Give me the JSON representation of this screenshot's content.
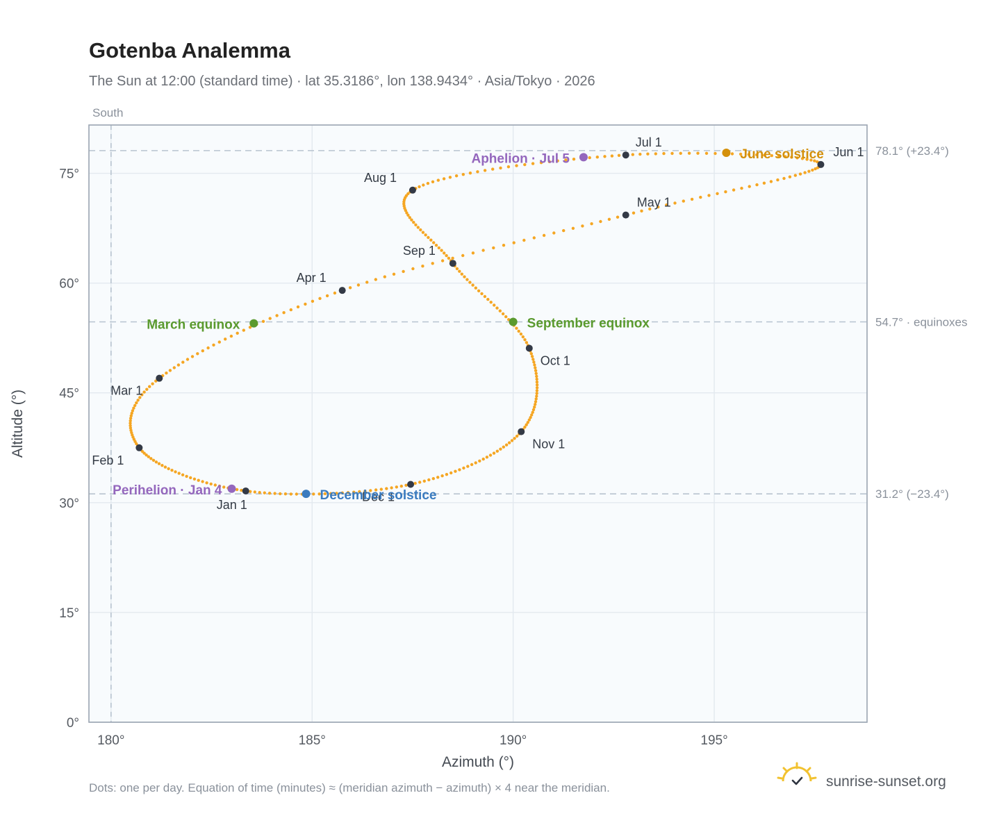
{
  "title": "Gotenba Analemma",
  "subtitle": "The Sun at 12:00 (standard time) · lat 35.3186°, lon 138.9434° · Asia/Tokyo · 2026",
  "south_label": "South",
  "footer_note": "Dots: one per day. Equation of time (minutes) ≈ (meridian azimuth − azimuth) × 4 near the meridian.",
  "brand": "sunrise-sunset.org",
  "colors": {
    "curve": "#f5a623",
    "month_marker": "#343a46",
    "equinox": "#5a9a2e",
    "june_solstice": "#d4900b",
    "december_solstice": "#3a7bbf",
    "apsis": "#9467bd",
    "reference_line": "#b7c3cf",
    "plot_background": "#f8fbfd"
  },
  "chart_data": {
    "type": "scatter",
    "xlabel": "Azimuth (°)",
    "ylabel": "Altitude (°)",
    "xlim": [
      179.45,
      198.8
    ],
    "ylim": [
      0,
      81.6
    ],
    "x_ticks": [
      180,
      185,
      190,
      195
    ],
    "x_tick_labels": [
      "180°",
      "185°",
      "190°",
      "195°"
    ],
    "y_ticks": [
      0,
      15,
      30,
      45,
      60,
      75
    ],
    "y_tick_labels": [
      "0°",
      "15°",
      "30°",
      "45°",
      "60°",
      "75°"
    ],
    "grid": true,
    "meridian_azimuth": 180,
    "reference_lines": [
      {
        "altitude": 78.1,
        "label": "78.1° (+23.4°)"
      },
      {
        "altitude": 54.7,
        "label": "54.7° · equinoxes"
      },
      {
        "altitude": 31.2,
        "label": "31.2° (−23.4°)"
      }
    ],
    "months": [
      {
        "label": "Jan 1",
        "az": 183.35,
        "alt": 31.6
      },
      {
        "label": "Feb 1",
        "az": 180.7,
        "alt": 37.5
      },
      {
        "label": "Mar 1",
        "az": 181.2,
        "alt": 47.0
      },
      {
        "label": "Apr 1",
        "az": 185.75,
        "alt": 59.0
      },
      {
        "label": "May 1",
        "az": 192.8,
        "alt": 69.3
      },
      {
        "label": "Jun 1",
        "az": 197.65,
        "alt": 76.2
      },
      {
        "label": "Jul 1",
        "az": 192.8,
        "alt": 77.5
      },
      {
        "label": "Aug 1",
        "az": 187.5,
        "alt": 72.7
      },
      {
        "label": "Sep 1",
        "az": 188.5,
        "alt": 62.7
      },
      {
        "label": "Oct 1",
        "az": 190.4,
        "alt": 51.1
      },
      {
        "label": "Nov 1",
        "az": 190.2,
        "alt": 39.7
      },
      {
        "label": "Dec 1",
        "az": 187.45,
        "alt": 32.5
      }
    ],
    "events": [
      {
        "label": "Perihelion · Jan 4",
        "az": 183.0,
        "alt": 31.9,
        "kind": "apsis"
      },
      {
        "label": "March equinox",
        "az": 183.55,
        "alt": 54.5,
        "kind": "equinox"
      },
      {
        "label": "June solstice",
        "az": 195.3,
        "alt": 77.8,
        "kind": "june_solstice"
      },
      {
        "label": "Aphelion · Jul 5",
        "az": 191.75,
        "alt": 77.2,
        "kind": "apsis"
      },
      {
        "label": "September equinox",
        "az": 190.0,
        "alt": 54.7,
        "kind": "equinox"
      },
      {
        "label": "December solstice",
        "az": 184.85,
        "alt": 31.2,
        "kind": "december_solstice"
      }
    ]
  }
}
